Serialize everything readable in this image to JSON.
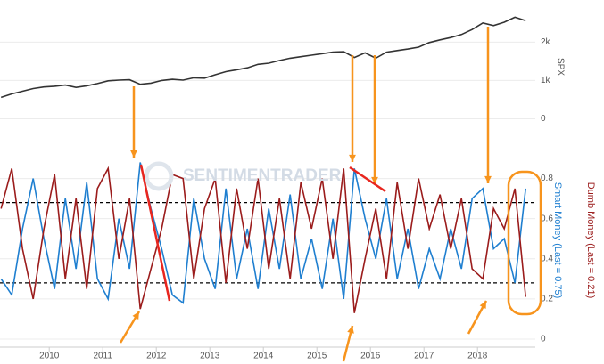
{
  "chart_data": [
    {
      "type": "line",
      "y_label": "SPX",
      "x": [
        2009.1,
        2009.3,
        2009.5,
        2009.7,
        2009.9,
        2010.1,
        2010.3,
        2010.5,
        2010.7,
        2010.9,
        2011.1,
        2011.3,
        2011.5,
        2011.7,
        2011.9,
        2012.1,
        2012.3,
        2012.5,
        2012.7,
        2012.9,
        2013.1,
        2013.3,
        2013.5,
        2013.7,
        2013.9,
        2014.1,
        2014.3,
        2014.5,
        2014.7,
        2014.9,
        2015.1,
        2015.3,
        2015.5,
        2015.7,
        2015.9,
        2016.1,
        2016.3,
        2016.5,
        2016.7,
        2016.9,
        2017.1,
        2017.3,
        2017.5,
        2017.7,
        2017.9,
        2018.1,
        2018.3,
        2018.5,
        2018.7,
        2018.9
      ],
      "series": [
        {
          "name": "SPX",
          "color": "#333333",
          "values": [
            560,
            650,
            720,
            790,
            830,
            850,
            880,
            820,
            860,
            920,
            990,
            1010,
            1020,
            900,
            930,
            1000,
            1030,
            1010,
            1070,
            1060,
            1150,
            1230,
            1280,
            1330,
            1420,
            1450,
            1520,
            1580,
            1620,
            1660,
            1700,
            1740,
            1750,
            1600,
            1720,
            1580,
            1740,
            1780,
            1820,
            1870,
            1990,
            2060,
            2120,
            2200,
            2330,
            2500,
            2430,
            2520,
            2650,
            2560
          ]
        }
      ],
      "xlim": [
        2009.08,
        2019.08
      ],
      "ylim": [
        -500,
        3100
      ],
      "yticks": [
        0,
        {
          "value": 1000,
          "label": "1k"
        },
        {
          "value": 2000,
          "label": "2k"
        }
      ],
      "grid": true
    },
    {
      "type": "line",
      "watermark": "SENTIMENTRADER",
      "x": [
        2009.1,
        2009.3,
        2009.5,
        2009.7,
        2009.9,
        2010.1,
        2010.3,
        2010.5,
        2010.7,
        2010.9,
        2011.1,
        2011.3,
        2011.5,
        2011.7,
        2011.9,
        2012.1,
        2012.3,
        2012.5,
        2012.7,
        2012.9,
        2013.1,
        2013.3,
        2013.5,
        2013.7,
        2013.9,
        2014.1,
        2014.3,
        2014.5,
        2014.7,
        2014.9,
        2015.1,
        2015.3,
        2015.5,
        2015.7,
        2015.9,
        2016.1,
        2016.3,
        2016.5,
        2016.7,
        2016.9,
        2017.1,
        2017.3,
        2017.5,
        2017.7,
        2017.9,
        2018.1,
        2018.3,
        2018.5,
        2018.7,
        2018.9
      ],
      "series": [
        {
          "name": "Smart Money (Last = 0.75)",
          "color": "#1f7fd0",
          "values": [
            0.3,
            0.22,
            0.55,
            0.8,
            0.5,
            0.25,
            0.7,
            0.35,
            0.78,
            0.3,
            0.2,
            0.6,
            0.35,
            0.88,
            0.65,
            0.45,
            0.22,
            0.18,
            0.7,
            0.4,
            0.25,
            0.75,
            0.3,
            0.55,
            0.25,
            0.65,
            0.35,
            0.72,
            0.3,
            0.5,
            0.25,
            0.6,
            0.2,
            0.85,
            0.6,
            0.4,
            0.7,
            0.3,
            0.55,
            0.25,
            0.45,
            0.3,
            0.55,
            0.35,
            0.7,
            0.75,
            0.45,
            0.5,
            0.28,
            0.75
          ]
        },
        {
          "name": "Dumb Money (Last = 0.21)",
          "color": "#9b1c1c",
          "values": [
            0.65,
            0.85,
            0.45,
            0.2,
            0.55,
            0.82,
            0.3,
            0.7,
            0.25,
            0.75,
            0.85,
            0.4,
            0.7,
            0.15,
            0.35,
            0.55,
            0.82,
            0.8,
            0.3,
            0.65,
            0.8,
            0.28,
            0.75,
            0.45,
            0.8,
            0.35,
            0.7,
            0.3,
            0.78,
            0.55,
            0.8,
            0.4,
            0.85,
            0.13,
            0.4,
            0.65,
            0.3,
            0.78,
            0.45,
            0.8,
            0.55,
            0.72,
            0.45,
            0.7,
            0.35,
            0.3,
            0.65,
            0.55,
            0.75,
            0.21
          ]
        }
      ],
      "reference_lines": [
        0.68,
        0.28
      ],
      "xlim": [
        2009.08,
        2019.08
      ],
      "ylim": [
        -0.04,
        0.98
      ],
      "xticks": [
        2010,
        2011,
        2012,
        2013,
        2014,
        2015,
        2016,
        2017,
        2018
      ],
      "yticks": [
        0,
        0.2,
        0.4,
        0.6,
        0.8
      ],
      "grid": true
    }
  ]
}
